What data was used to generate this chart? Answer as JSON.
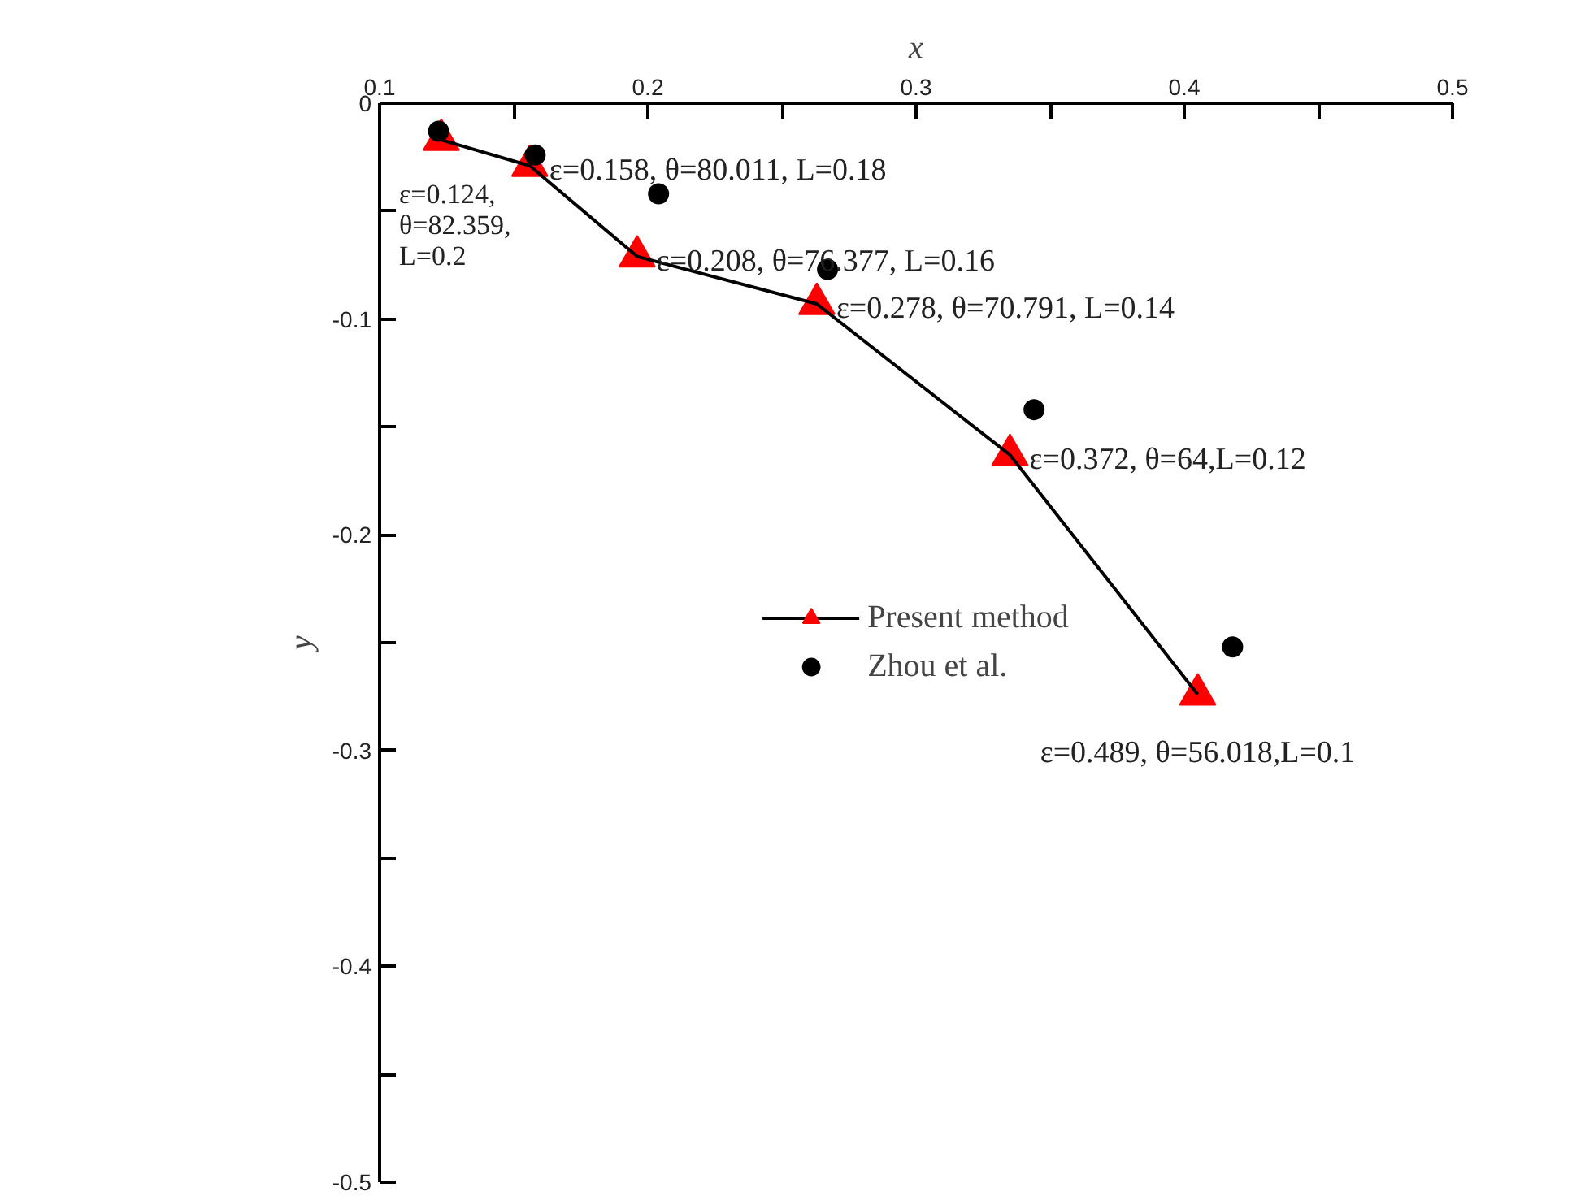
{
  "chart_data": {
    "type": "line",
    "xlabel": "x",
    "ylabel": "y",
    "xlim": [
      0.1,
      0.5
    ],
    "ylim": [
      -0.5,
      0
    ],
    "xticks": [
      {
        "value": 0.1,
        "label": "0.1"
      },
      {
        "value": 0.15,
        "label": null
      },
      {
        "value": 0.2,
        "label": "0.2"
      },
      {
        "value": 0.25,
        "label": null
      },
      {
        "value": 0.3,
        "label": "0.3"
      },
      {
        "value": 0.35,
        "label": null
      },
      {
        "value": 0.4,
        "label": "0.4"
      },
      {
        "value": 0.45,
        "label": null
      },
      {
        "value": 0.5,
        "label": "0.5"
      }
    ],
    "yticks": [
      0,
      {
        "value": -0.05,
        "label": null
      },
      -0.1,
      {
        "value": -0.15,
        "label": null
      },
      -0.2,
      {
        "value": -0.25,
        "label": null
      },
      -0.3,
      {
        "value": -0.35,
        "label": null
      },
      -0.4,
      {
        "value": -0.45,
        "label": null
      },
      -0.5
    ],
    "grid": false,
    "legend": "center",
    "series": [
      {
        "name": "Present method",
        "marker": "triangle",
        "color": "#ff0000",
        "x": [
          0.123,
          0.156,
          0.196,
          0.263,
          0.335,
          0.405
        ],
        "values": [
          -0.017,
          -0.029,
          -0.071,
          -0.093,
          -0.163,
          -0.274
        ]
      },
      {
        "name": "Zhou et al.",
        "type": "scatter",
        "marker": "circle",
        "color": "#000000",
        "x": [
          0.122,
          0.158,
          0.204,
          0.267,
          0.344,
          0.418
        ],
        "values": [
          -0.013,
          -0.024,
          -0.042,
          -0.077,
          -0.142,
          -0.252
        ]
      }
    ],
    "annotations": [
      {
        "text": "ε=0.124, θ=82.359, L=0.2",
        "x": 0.123,
        "y": -0.017
      },
      {
        "text": "ε=0.158, θ=80.011, L=0.18",
        "x": 0.156,
        "y": -0.029
      },
      {
        "text": "ε=0.208, θ=76.377, L=0.16",
        "x": 0.196,
        "y": -0.071
      },
      {
        "text": "ε=0.278, θ=70.791, L=0.14",
        "x": 0.263,
        "y": -0.093
      },
      {
        "text": "ε=0.372, θ=64,L=0.12",
        "x": 0.335,
        "y": -0.163
      },
      {
        "text": "ε=0.489, θ=56.018,L=0.1",
        "x": 0.405,
        "y": -0.274
      }
    ]
  }
}
